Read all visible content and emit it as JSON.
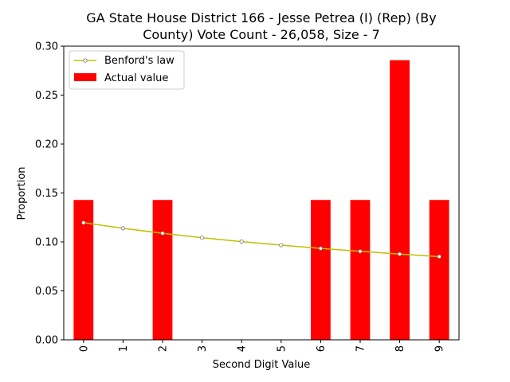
{
  "chart_data": {
    "type": "bar",
    "title_line1": "GA State House District 166 - Jesse Petrea (I) (Rep) (By",
    "title_line2": "County) Vote Count - 26,058, Size - 7",
    "xlabel": "Second Digit Value",
    "ylabel": "Proportion",
    "categories": [
      "0",
      "1",
      "2",
      "3",
      "4",
      "5",
      "6",
      "7",
      "8",
      "9"
    ],
    "ylim": [
      0,
      0.3
    ],
    "yticks": [
      "0.00",
      "0.05",
      "0.10",
      "0.15",
      "0.20",
      "0.25",
      "0.30"
    ],
    "grid": false,
    "legend_position": "top-left",
    "series": [
      {
        "name": "Actual value",
        "kind": "bar",
        "color": "#ff0000",
        "values": [
          0.1429,
          0,
          0.1429,
          0,
          0,
          0,
          0.1429,
          0.1429,
          0.2857,
          0.1429
        ]
      },
      {
        "name": "Benford's law",
        "kind": "line",
        "color": "#bfbf00",
        "values": [
          0.1197,
          0.1139,
          0.1088,
          0.1043,
          0.1003,
          0.0967,
          0.0934,
          0.0904,
          0.0876,
          0.085
        ]
      }
    ]
  }
}
